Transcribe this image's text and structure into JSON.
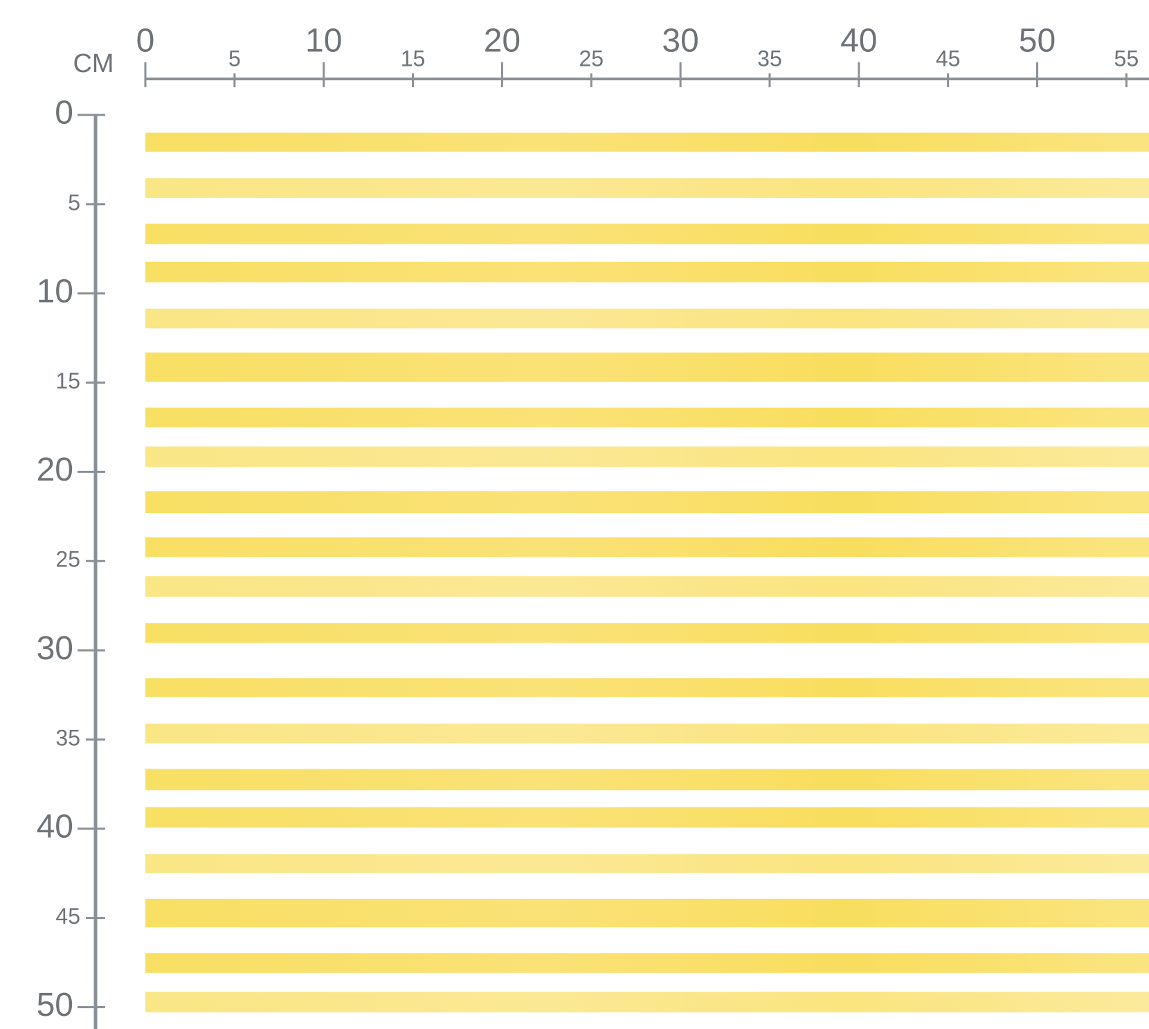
{
  "unit": "CM",
  "top_ruler": {
    "labels": [
      0,
      5,
      10,
      15,
      20,
      25,
      30,
      35,
      40,
      45,
      50,
      55
    ]
  },
  "left_ruler": {
    "labels": [
      0,
      5,
      10,
      15,
      20,
      25,
      30,
      35,
      40,
      45,
      50
    ]
  }
}
